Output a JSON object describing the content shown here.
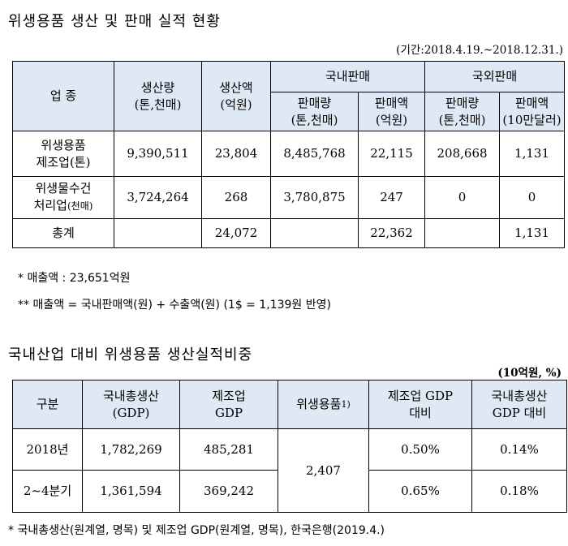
{
  "section1": {
    "title": "위생용품 생산 및 판매 실적 현황",
    "period": "(기간:2018.4.19.~2018.12.31.)",
    "headers": {
      "industry": "업 종",
      "production_volume": [
        "생산량",
        "(톤,천매)"
      ],
      "production_value": [
        "생산액",
        "(억원)"
      ],
      "domestic": "국내판매",
      "overseas": "국외판매",
      "dom_volume": [
        "판매량",
        "(톤,천매)"
      ],
      "dom_value": [
        "판매액",
        "(억원)"
      ],
      "ovs_volume": [
        "판매량",
        "(톤,천매)"
      ],
      "ovs_value": [
        "판매액",
        "(10만달러)"
      ]
    },
    "rows": [
      {
        "industry": [
          "위생용품",
          "제조업(톤)"
        ],
        "production_volume": "9,390,511",
        "production_value": "23,804",
        "dom_volume": "8,485,768",
        "dom_value": "22,115",
        "ovs_volume": "208,668",
        "ovs_value": "1,131"
      },
      {
        "industry": [
          "위생물수건",
          "처리업",
          "(천매)"
        ],
        "production_volume": "3,724,264",
        "production_value": "268",
        "dom_volume": "3,780,875",
        "dom_value": "247",
        "ovs_volume": "0",
        "ovs_value": "0"
      },
      {
        "industry": [
          "총계"
        ],
        "production_volume": "",
        "production_value": "24,072",
        "dom_volume": "",
        "dom_value": "22,362",
        "ovs_volume": "",
        "ovs_value": "1,131"
      }
    ],
    "notes": [
      "* 매출액 : 23,651억원",
      "** 매출액 = 국내판매액(원) + 수출액(원) (1$ = 1,139원 반영)"
    ]
  },
  "section2": {
    "title": "국내산업 대비 위생용품 생산실적비중",
    "unit": "(10억원, %)",
    "headers": {
      "category": "구분",
      "gdp": [
        "국내총생산",
        "(GDP)"
      ],
      "mfg_gdp": [
        "제조업",
        "GDP"
      ],
      "hygiene": "위생용품",
      "hygiene_sup": "1)",
      "vs_mfg": [
        "제조업 GDP",
        "대비"
      ],
      "vs_gdp": [
        "국내총생산",
        "GDP 대비"
      ]
    },
    "rows": [
      {
        "category": "2018년",
        "gdp": "1,782,269",
        "mfg_gdp": "485,281",
        "vs_mfg": "0.50%",
        "vs_gdp": "0.14%"
      },
      {
        "category": "2~4분기",
        "gdp": "1,361,594",
        "mfg_gdp": "369,242",
        "vs_mfg": "0.65%",
        "vs_gdp": "0.18%"
      }
    ],
    "hygiene_value": "2,407",
    "footnote": "* 국내총생산(원계열, 명목) 및 제조업 GDP(원계열, 명목), 한국은행(2019.4.)"
  }
}
